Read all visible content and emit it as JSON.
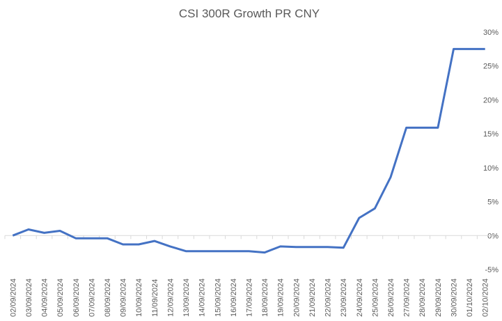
{
  "chart_data": {
    "type": "line",
    "title": "CSI 300R Growth PR CNY",
    "xlabel": "",
    "ylabel": "",
    "ylim": [
      -5,
      30
    ],
    "y_ticks": [
      "30%",
      "25%",
      "20%",
      "15%",
      "10%",
      "5%",
      "0%",
      "-5%"
    ],
    "y_tick_values": [
      30,
      25,
      20,
      15,
      10,
      5,
      0,
      -5
    ],
    "y_axis_position": "right",
    "grid": false,
    "legend": "none",
    "line_color": "#4472C4",
    "categories": [
      "02/09/2024",
      "03/09/2024",
      "04/09/2024",
      "05/09/2024",
      "06/09/2024",
      "07/09/2024",
      "08/09/2024",
      "09/09/2024",
      "10/09/2024",
      "11/09/2024",
      "12/09/2024",
      "13/09/2024",
      "14/09/2024",
      "15/09/2024",
      "16/09/2024",
      "17/09/2024",
      "18/09/2024",
      "19/09/2024",
      "20/09/2024",
      "21/09/2024",
      "22/09/2024",
      "23/09/2024",
      "24/09/2024",
      "25/09/2024",
      "26/09/2024",
      "27/09/2024",
      "28/09/2024",
      "29/09/2024",
      "30/09/2024",
      "01/10/2024",
      "02/10/2024"
    ],
    "series": [
      {
        "name": "CSI 300R Growth PR CNY",
        "values": [
          0,
          0.9,
          0.4,
          0.7,
          -0.4,
          -0.4,
          -0.4,
          -1.3,
          -1.3,
          -0.8,
          -1.6,
          -2.3,
          -2.3,
          -2.3,
          -2.3,
          -2.3,
          -2.5,
          -1.6,
          -1.7,
          -1.7,
          -1.7,
          -1.8,
          2.6,
          4.0,
          8.6,
          15.9,
          15.9,
          15.9,
          27.5,
          27.5,
          27.5
        ]
      }
    ]
  }
}
